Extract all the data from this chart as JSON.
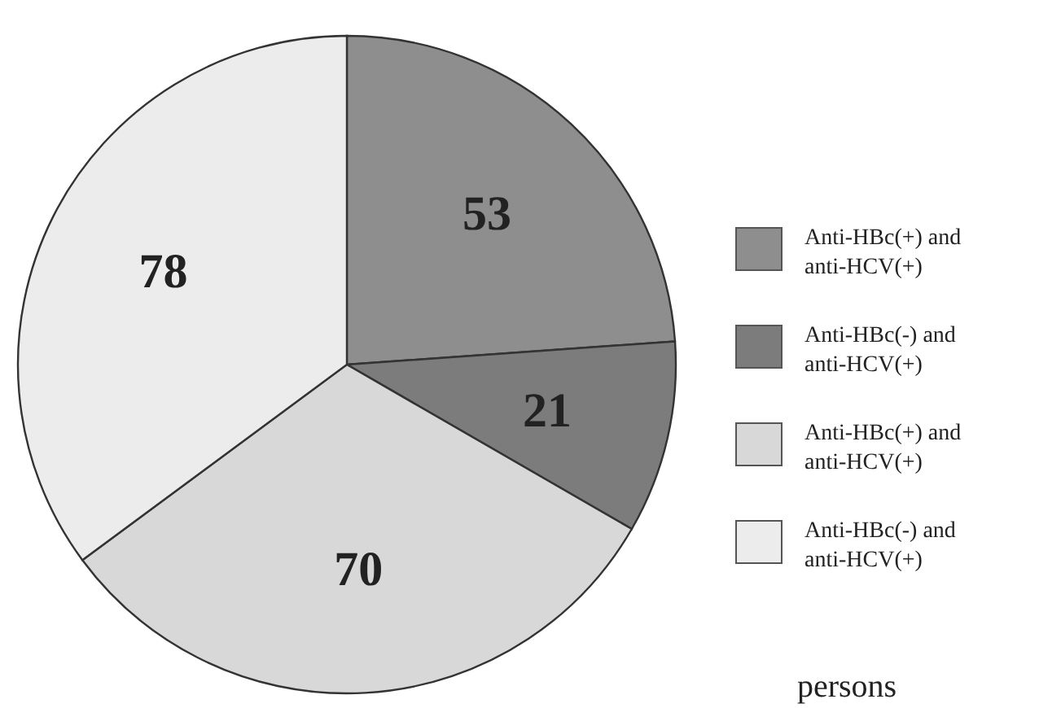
{
  "chart_data": {
    "type": "pie",
    "categories": [
      "Anti-HBc(+) and anti-HCV(+)",
      "Anti-HBc(-) and anti-HCV(+)",
      "Anti-HBc(+) and anti-HCV(+)",
      "Anti-HBc(-) and anti-HCV(+)"
    ],
    "values": [
      53,
      21,
      70,
      78
    ],
    "colors": [
      "#8e8e8e",
      "#7c7c7c",
      "#d8d8d8",
      "#ececec"
    ],
    "data_labels": true,
    "legend": "right",
    "annotations": [
      "persons"
    ]
  }
}
